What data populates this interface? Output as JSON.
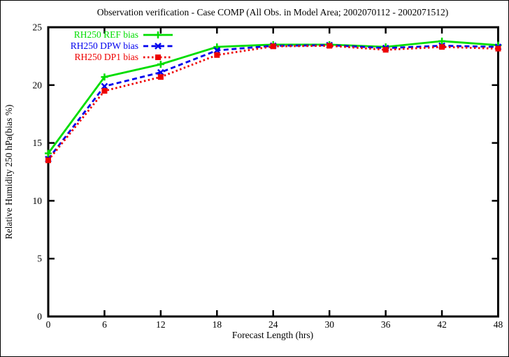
{
  "window": {
    "background": "#ffffff",
    "border_color": "#000000",
    "text_color": "#000000"
  },
  "chart_data": {
    "type": "line",
    "title": "Observation verification - Case COMP (All Obs. in Model Area; 2002070112 - 2002071512)",
    "xlabel": "Forecast Length (hrs)",
    "ylabel": "Relative Humidity 250 hPa(bias %)",
    "xlim": [
      0,
      48
    ],
    "ylim": [
      0,
      25
    ],
    "xticks": [
      0,
      6,
      12,
      18,
      24,
      30,
      36,
      42,
      48
    ],
    "yticks": [
      0,
      5,
      10,
      15,
      20,
      25
    ],
    "grid": false,
    "legend_position": "top-left-inside",
    "x": [
      0,
      6,
      12,
      18,
      24,
      30,
      36,
      42,
      48
    ],
    "series": [
      {
        "name": "RH250 REF bias",
        "color": "#00dd00",
        "line_style": "solid",
        "marker": "plus",
        "values": [
          14.1,
          20.7,
          21.8,
          23.3,
          23.5,
          23.5,
          23.3,
          23.8,
          23.45
        ]
      },
      {
        "name": "RH250 DPW bias",
        "color": "#0000ee",
        "line_style": "dashed",
        "marker": "x-cross",
        "values": [
          13.6,
          19.9,
          21.1,
          23.0,
          23.4,
          23.45,
          23.2,
          23.4,
          23.3
        ]
      },
      {
        "name": "RH250 DP1 bias",
        "color": "#ee0000",
        "line_style": "dotted",
        "marker": "filled-square",
        "values": [
          13.5,
          19.5,
          20.7,
          22.6,
          23.35,
          23.4,
          23.05,
          23.3,
          23.15
        ]
      }
    ]
  }
}
